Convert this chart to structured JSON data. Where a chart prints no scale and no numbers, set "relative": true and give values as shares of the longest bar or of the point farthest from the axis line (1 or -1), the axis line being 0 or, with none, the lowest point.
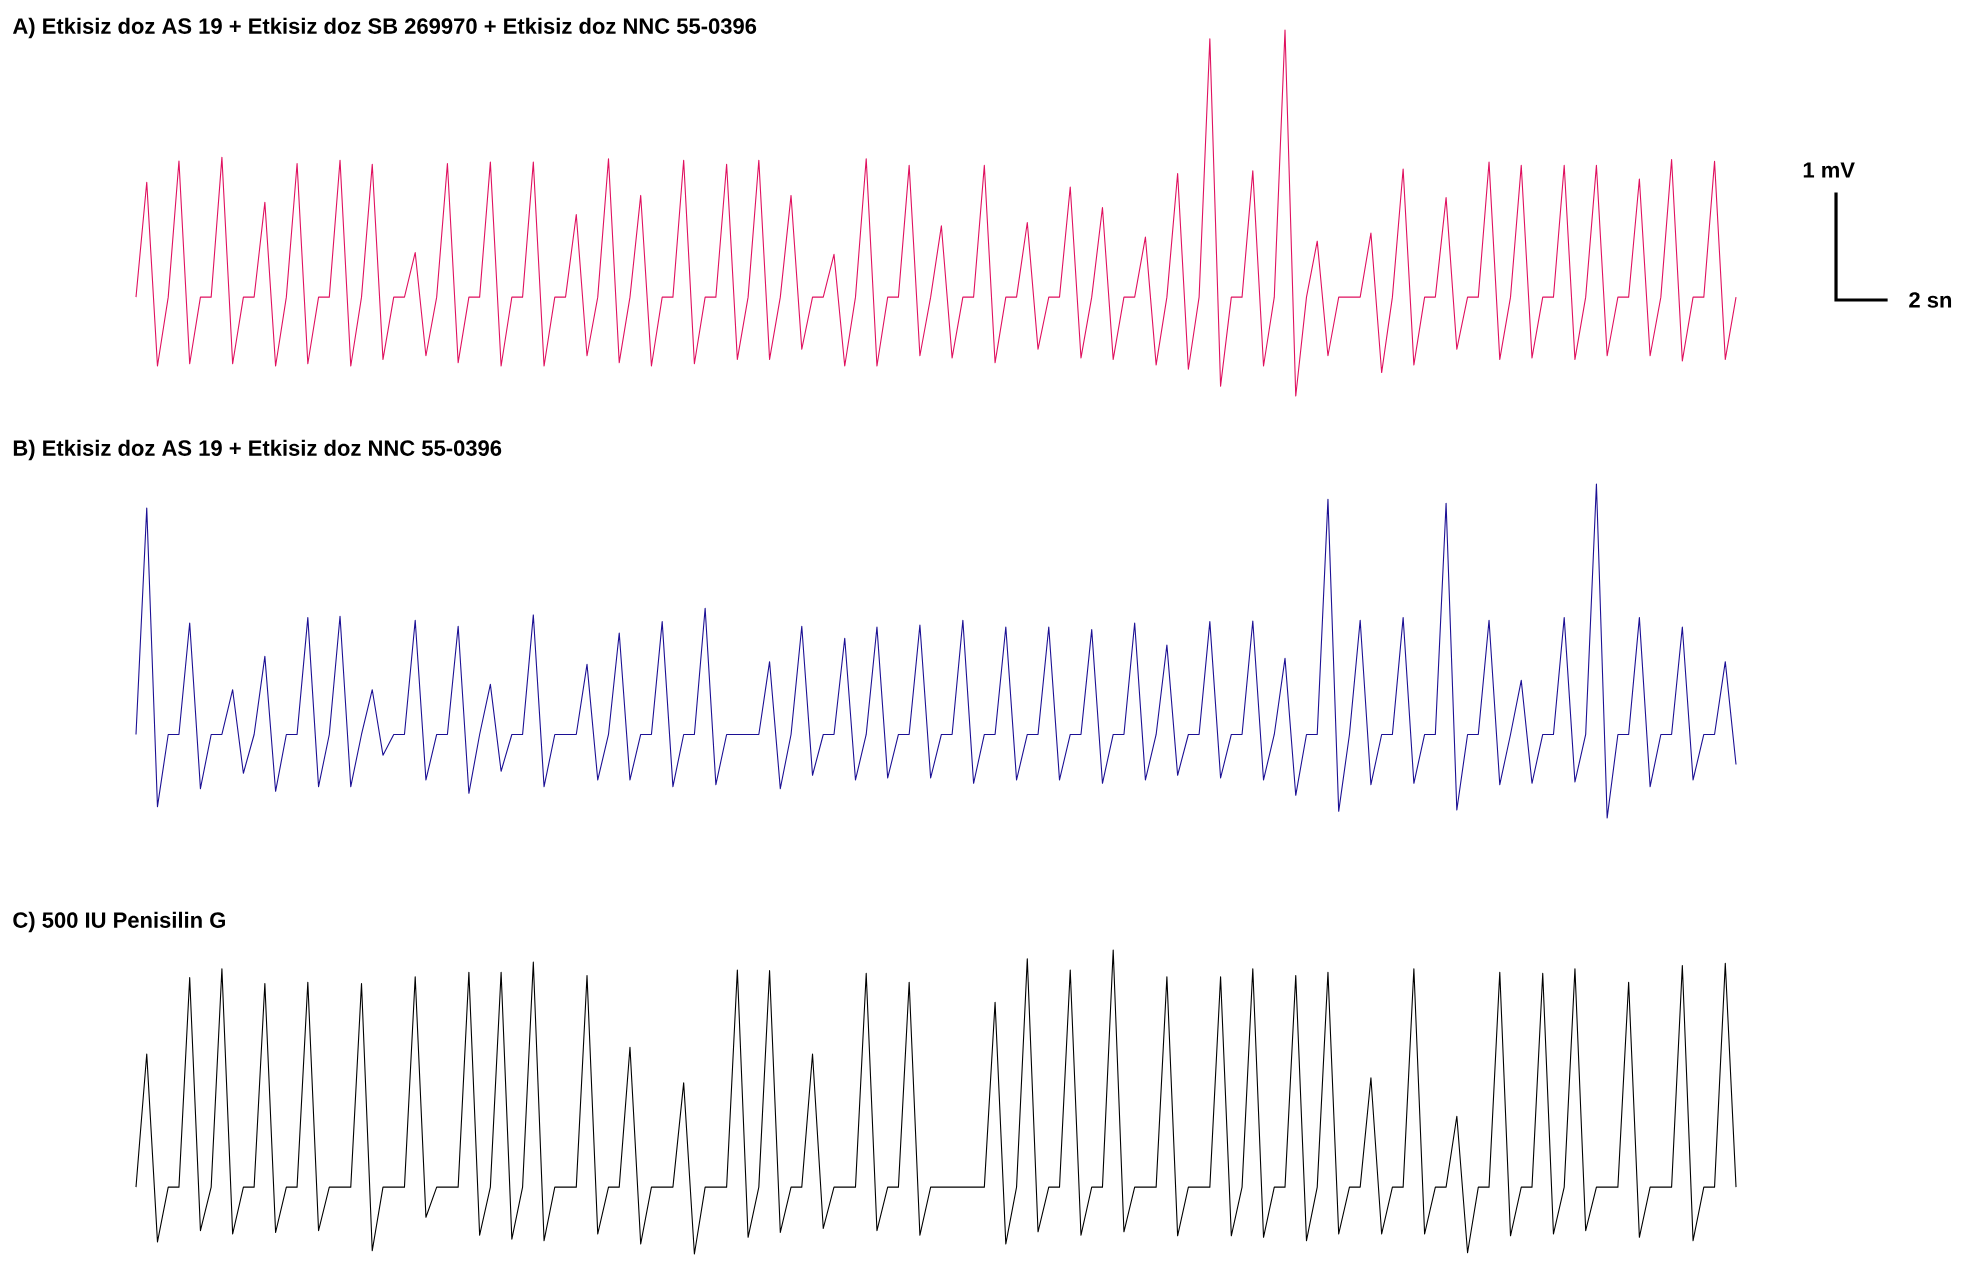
{
  "chart_data": [
    {
      "type": "line",
      "title": "A) Etkisiz doz AS 19 + Etkisiz doz SB 269970 + Etkisiz doz NNC 55-0396",
      "relative": true,
      "color": "#e0115f",
      "annotations": [
        "1 mV",
        "2 sn"
      ],
      "categories": [
        null,
        null,
        null,
        null,
        null,
        null,
        null,
        null,
        null,
        null,
        null,
        null,
        null,
        null,
        null,
        null,
        null,
        null,
        null,
        null,
        null,
        null,
        null,
        null,
        null,
        null,
        null,
        null,
        null,
        null,
        null,
        null,
        null,
        null,
        null,
        null,
        null,
        null,
        null,
        null,
        null,
        null,
        null,
        null,
        null,
        null,
        null,
        null,
        null,
        null,
        null,
        null,
        null,
        null,
        null,
        null,
        null,
        null,
        null,
        null,
        null,
        null,
        null,
        null,
        null,
        null,
        null,
        null,
        null,
        null,
        null,
        null,
        null,
        null,
        null,
        null,
        null,
        null,
        null,
        null,
        null,
        null,
        null,
        null,
        null,
        null,
        null,
        null,
        null,
        null,
        null,
        null,
        null,
        null,
        null,
        null,
        null,
        null,
        null,
        null,
        null,
        null,
        null,
        null,
        null,
        null,
        null,
        null,
        null,
        null,
        null,
        null,
        null,
        null,
        null,
        null,
        null,
        null,
        null,
        null,
        null,
        null,
        null,
        null,
        null,
        null,
        null,
        null,
        null,
        null,
        null,
        null,
        null,
        null,
        null,
        null,
        null,
        null,
        null,
        null,
        null,
        null,
        null,
        null,
        null,
        null,
        null,
        null,
        null,
        null
      ],
      "values": [
        0.27,
        0.584,
        0.082,
        0.27,
        0.642,
        0.088,
        0.27,
        0.27,
        0.652,
        0.088,
        0.27,
        0.27,
        0.529,
        0.082,
        0.27,
        0.635,
        0.088,
        0.27,
        0.27,
        0.644,
        0.082,
        0.27,
        0.633,
        0.1,
        0.27,
        0.27,
        0.392,
        0.11,
        0.27,
        0.635,
        0.091,
        0.27,
        0.27,
        0.639,
        0.082,
        0.27,
        0.27,
        0.639,
        0.082,
        0.27,
        0.27,
        0.496,
        0.11,
        0.27,
        0.648,
        0.091,
        0.27,
        0.548,
        0.082,
        0.27,
        0.27,
        0.644,
        0.088,
        0.27,
        0.27,
        0.633,
        0.1,
        0.27,
        0.644,
        0.1,
        0.27,
        0.548,
        0.128,
        0.27,
        0.27,
        0.387,
        0.082,
        0.27,
        0.648,
        0.082,
        0.27,
        0.27,
        0.63,
        0.11,
        0.27,
        0.465,
        0.104,
        0.27,
        0.27,
        0.63,
        0.091,
        0.27,
        0.27,
        0.474,
        0.128,
        0.27,
        0.27,
        0.571,
        0.104,
        0.27,
        0.515,
        0.1,
        0.27,
        0.27,
        0.434,
        0.085,
        0.27,
        0.608,
        0.073,
        0.27,
        0.976,
        0.027,
        0.27,
        0.27,
        0.615,
        0.082,
        0.27,
        1,
        0,
        0.27,
        0.423,
        0.11,
        0.27,
        0.27,
        0.27,
        0.445,
        0.064,
        0.27,
        0.62,
        0.085,
        0.27,
        0.27,
        0.542,
        0.128,
        0.27,
        0.27,
        0.639,
        0.1,
        0.27,
        0.63,
        0.104,
        0.27,
        0.27,
        0.63,
        0.1,
        0.27,
        0.63,
        0.11,
        0.27,
        0.27,
        0.593,
        0.11,
        0.27,
        0.646,
        0.096,
        0.27,
        0.27,
        0.641,
        0.1,
        0.27
      ]
    },
    {
      "type": "line",
      "title": "B) Etkisiz doz AS 19 + Etkisiz doz NNC 55-0396",
      "relative": true,
      "color": "#1c1094",
      "categories": [
        null,
        null,
        null,
        null,
        null,
        null,
        null,
        null,
        null,
        null,
        null,
        null,
        null,
        null,
        null,
        null,
        null,
        null,
        null,
        null,
        null,
        null,
        null,
        null,
        null,
        null,
        null,
        null,
        null,
        null,
        null,
        null,
        null,
        null,
        null,
        null,
        null,
        null,
        null,
        null,
        null,
        null,
        null,
        null,
        null,
        null,
        null,
        null,
        null,
        null,
        null,
        null,
        null,
        null,
        null,
        null,
        null,
        null,
        null,
        null,
        null,
        null,
        null,
        null,
        null,
        null,
        null,
        null,
        null,
        null,
        null,
        null,
        null,
        null,
        null,
        null,
        null,
        null,
        null,
        null,
        null,
        null,
        null,
        null,
        null,
        null,
        null,
        null,
        null,
        null,
        null,
        null,
        null,
        null,
        null,
        null,
        null,
        null,
        null,
        null,
        null,
        null,
        null,
        null,
        null,
        null,
        null,
        null,
        null,
        null,
        null,
        null,
        null,
        null,
        null,
        null,
        null,
        null,
        null,
        null,
        null,
        null,
        null,
        null,
        null,
        null,
        null,
        null,
        null,
        null,
        null,
        null,
        null,
        null,
        null,
        null,
        null,
        null,
        null,
        null,
        null,
        null,
        null,
        null,
        null,
        null,
        null,
        null,
        null,
        null
      ],
      "values": [
        0.25,
        0.928,
        0.034,
        0.25,
        0.25,
        0.584,
        0.088,
        0.25,
        0.25,
        0.384,
        0.134,
        0.25,
        0.484,
        0.08,
        0.25,
        0.25,
        0.6,
        0.094,
        0.25,
        0.604,
        0.094,
        0.25,
        0.384,
        0.188,
        0.25,
        0.25,
        0.592,
        0.114,
        0.25,
        0.25,
        0.574,
        0.074,
        0.25,
        0.4,
        0.14,
        0.25,
        0.25,
        0.608,
        0.094,
        0.25,
        0.25,
        0.25,
        0.46,
        0.114,
        0.25,
        0.554,
        0.114,
        0.25,
        0.25,
        0.588,
        0.094,
        0.25,
        0.25,
        0.628,
        0.1,
        0.25,
        0.25,
        0.25,
        0.25,
        0.468,
        0.088,
        0.25,
        0.574,
        0.128,
        0.25,
        0.25,
        0.538,
        0.114,
        0.25,
        0.572,
        0.12,
        0.25,
        0.25,
        0.578,
        0.12,
        0.25,
        0.25,
        0.592,
        0.104,
        0.25,
        0.25,
        0.572,
        0.114,
        0.25,
        0.25,
        0.572,
        0.114,
        0.25,
        0.25,
        0.564,
        0.104,
        0.25,
        0.25,
        0.584,
        0.114,
        0.25,
        0.518,
        0.128,
        0.25,
        0.25,
        0.588,
        0.12,
        0.25,
        0.25,
        0.59,
        0.114,
        0.25,
        0.478,
        0.068,
        0.25,
        0.25,
        0.954,
        0.02,
        0.25,
        0.592,
        0.1,
        0.25,
        0.25,
        0.6,
        0.104,
        0.25,
        0.25,
        0.942,
        0.024,
        0.25,
        0.25,
        0.592,
        0.1,
        0.25,
        0.412,
        0.104,
        0.25,
        0.25,
        0.6,
        0.108,
        0.25,
        1,
        0,
        0.25,
        0.25,
        0.6,
        0.094,
        0.25,
        0.25,
        0.572,
        0.114,
        0.25,
        0.25,
        0.468,
        0.16
      ]
    },
    {
      "type": "line",
      "title": "C) 500 IU Penisilin G",
      "relative": true,
      "color": "#000000",
      "categories": [
        null,
        null,
        null,
        null,
        null,
        null,
        null,
        null,
        null,
        null,
        null,
        null,
        null,
        null,
        null,
        null,
        null,
        null,
        null,
        null,
        null,
        null,
        null,
        null,
        null,
        null,
        null,
        null,
        null,
        null,
        null,
        null,
        null,
        null,
        null,
        null,
        null,
        null,
        null,
        null,
        null,
        null,
        null,
        null,
        null,
        null,
        null,
        null,
        null,
        null,
        null,
        null,
        null,
        null,
        null,
        null,
        null,
        null,
        null,
        null,
        null,
        null,
        null,
        null,
        null,
        null,
        null,
        null,
        null,
        null,
        null,
        null,
        null,
        null,
        null,
        null,
        null,
        null,
        null,
        null,
        null,
        null,
        null,
        null,
        null,
        null,
        null,
        null,
        null,
        null,
        null,
        null,
        null,
        null,
        null,
        null,
        null,
        null,
        null,
        null,
        null,
        null,
        null,
        null,
        null,
        null,
        null,
        null,
        null,
        null,
        null,
        null,
        null,
        null,
        null,
        null,
        null,
        null,
        null,
        null,
        null,
        null,
        null,
        null,
        null,
        null,
        null,
        null,
        null,
        null,
        null,
        null,
        null,
        null,
        null,
        null,
        null,
        null,
        null,
        null,
        null,
        null,
        null,
        null,
        null,
        null,
        null,
        null,
        null,
        null
      ],
      "values": [
        0.22,
        0.658,
        0.04,
        0.22,
        0.22,
        0.909,
        0.077,
        0.22,
        0.938,
        0.066,
        0.22,
        0.22,
        0.89,
        0.071,
        0.22,
        0.22,
        0.894,
        0.077,
        0.22,
        0.22,
        0.22,
        0.89,
        0.011,
        0.22,
        0.22,
        0.22,
        0.912,
        0.121,
        0.22,
        0.22,
        0.22,
        0.927,
        0.062,
        0.22,
        0.927,
        0.049,
        0.22,
        0.96,
        0.044,
        0.22,
        0.22,
        0.22,
        0.916,
        0.066,
        0.22,
        0.22,
        0.68,
        0.033,
        0.22,
        0.22,
        0.22,
        0.563,
        0,
        0.22,
        0.22,
        0.22,
        0.934,
        0.055,
        0.22,
        0.932,
        0.071,
        0.22,
        0.22,
        0.658,
        0.084,
        0.22,
        0.22,
        0.22,
        0.923,
        0.077,
        0.22,
        0.22,
        0.894,
        0.062,
        0.22,
        0.22,
        0.22,
        0.22,
        0.22,
        0.22,
        0.828,
        0.033,
        0.22,
        0.971,
        0.073,
        0.22,
        0.22,
        0.934,
        0.062,
        0.22,
        0.22,
        1,
        0.073,
        0.22,
        0.22,
        0.22,
        0.912,
        0.06,
        0.22,
        0.22,
        0.22,
        0.912,
        0.06,
        0.22,
        0.938,
        0.055,
        0.22,
        0.22,
        0.916,
        0.044,
        0.22,
        0.927,
        0.066,
        0.22,
        0.22,
        0.58,
        0.066,
        0.22,
        0.22,
        0.938,
        0.066,
        0.22,
        0.22,
        0.453,
        0.004,
        0.22,
        0.22,
        0.927,
        0.06,
        0.22,
        0.22,
        0.923,
        0.066,
        0.22,
        0.938,
        0.077,
        0.22,
        0.22,
        0.22,
        0.894,
        0.055,
        0.22,
        0.22,
        0.22,
        0.949,
        0.044,
        0.22,
        0.22,
        0.956,
        0.22
      ]
    }
  ]
}
